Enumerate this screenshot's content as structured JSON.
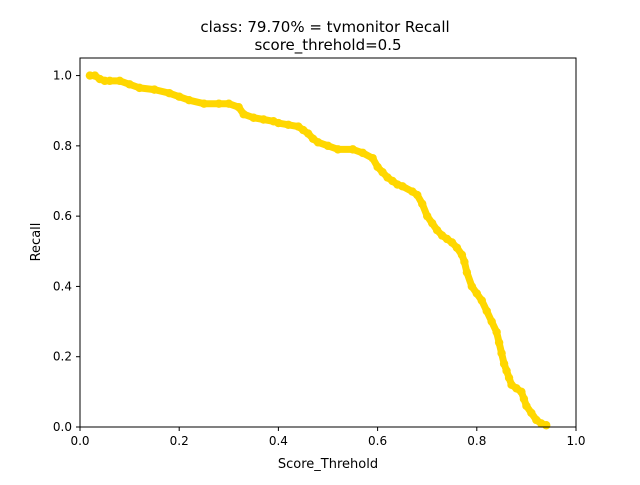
{
  "chart_data": {
    "type": "scatter",
    "title_line1": "class: 79.70% = tvmonitor Recall",
    "title_line2": "score_threhold=0.5",
    "xlabel": "Score_Threhold",
    "ylabel": "Recall",
    "xlim": [
      0.0,
      1.0
    ],
    "ylim": [
      0.0,
      1.05
    ],
    "grid": false,
    "legend": "none",
    "series_color": "#FFD700",
    "xticks": [
      {
        "value": 0.0,
        "label": "0.0"
      },
      {
        "value": 0.2,
        "label": "0.2"
      },
      {
        "value": 0.4,
        "label": "0.4"
      },
      {
        "value": 0.6,
        "label": "0.6"
      },
      {
        "value": 0.8,
        "label": "0.8"
      },
      {
        "value": 1.0,
        "label": "1.0"
      }
    ],
    "yticks": [
      {
        "value": 0.0,
        "label": "0.0"
      },
      {
        "value": 0.2,
        "label": "0.2"
      },
      {
        "value": 0.4,
        "label": "0.4"
      },
      {
        "value": 0.6,
        "label": "0.6"
      },
      {
        "value": 0.8,
        "label": "0.8"
      },
      {
        "value": 1.0,
        "label": "1.0"
      }
    ],
    "series": [
      {
        "x": [
          0.02,
          0.03,
          0.04,
          0.05,
          0.06,
          0.08,
          0.1,
          0.12,
          0.15,
          0.18,
          0.2,
          0.22,
          0.25,
          0.28,
          0.3,
          0.32,
          0.33,
          0.35,
          0.37,
          0.39,
          0.4,
          0.42,
          0.44,
          0.45,
          0.46,
          0.47,
          0.48,
          0.5,
          0.52,
          0.55,
          0.57,
          0.59,
          0.6,
          0.61,
          0.62,
          0.63,
          0.64,
          0.65,
          0.67,
          0.68,
          0.69,
          0.7,
          0.71,
          0.72,
          0.73,
          0.74,
          0.75,
          0.76,
          0.77,
          0.775,
          0.78,
          0.79,
          0.8,
          0.81,
          0.82,
          0.83,
          0.84,
          0.845,
          0.85,
          0.855,
          0.86,
          0.865,
          0.87,
          0.88,
          0.89,
          0.895,
          0.9,
          0.91,
          0.92,
          0.93,
          0.94
        ],
        "y": [
          1.0,
          1.0,
          0.99,
          0.985,
          0.985,
          0.985,
          0.975,
          0.965,
          0.96,
          0.95,
          0.94,
          0.93,
          0.92,
          0.92,
          0.92,
          0.91,
          0.89,
          0.88,
          0.875,
          0.87,
          0.865,
          0.86,
          0.855,
          0.845,
          0.835,
          0.82,
          0.81,
          0.8,
          0.79,
          0.79,
          0.78,
          0.765,
          0.74,
          0.725,
          0.71,
          0.7,
          0.69,
          0.685,
          0.67,
          0.66,
          0.635,
          0.6,
          0.58,
          0.56,
          0.545,
          0.535,
          0.525,
          0.51,
          0.49,
          0.47,
          0.44,
          0.4,
          0.38,
          0.36,
          0.33,
          0.3,
          0.27,
          0.24,
          0.21,
          0.18,
          0.16,
          0.14,
          0.12,
          0.11,
          0.1,
          0.08,
          0.06,
          0.04,
          0.02,
          0.01,
          0.005
        ]
      }
    ]
  }
}
